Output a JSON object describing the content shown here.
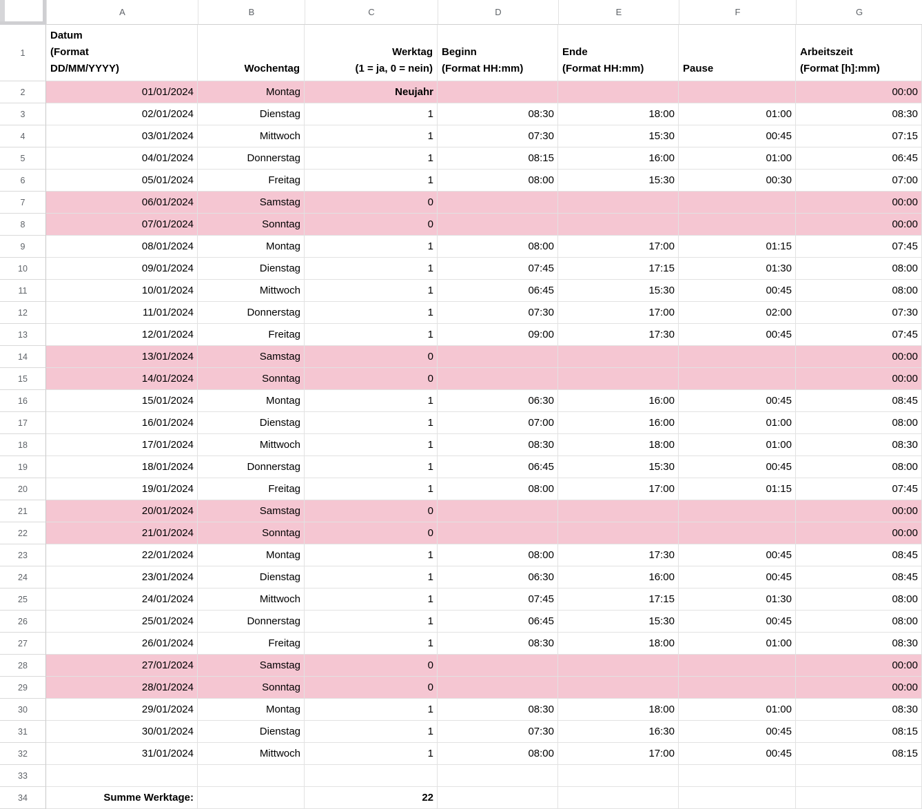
{
  "sheet": {
    "column_letters": [
      "A",
      "B",
      "C",
      "D",
      "E",
      "F",
      "G"
    ],
    "header_row": {
      "n": "1",
      "cells": [
        "Datum\n(Format\nDD/MM/YYYY)",
        "Wochentag",
        "Werktag\n(1 = ja, 0 = nein)",
        "Beginn\n(Format HH:mm)",
        "Ende\n(Format HH:mm)",
        "Pause",
        "Arbeitszeit\n(Format [h]:mm)"
      ]
    },
    "rows": [
      {
        "n": "2",
        "highlight": true,
        "bold_cols": [
          2
        ],
        "cells": [
          "01/01/2024",
          "Montag",
          "Neujahr",
          "",
          "",
          "",
          "00:00"
        ]
      },
      {
        "n": "3",
        "highlight": false,
        "bold_cols": [],
        "cells": [
          "02/01/2024",
          "Dienstag",
          "1",
          "08:30",
          "18:00",
          "01:00",
          "08:30"
        ]
      },
      {
        "n": "4",
        "highlight": false,
        "bold_cols": [],
        "cells": [
          "03/01/2024",
          "Mittwoch",
          "1",
          "07:30",
          "15:30",
          "00:45",
          "07:15"
        ]
      },
      {
        "n": "5",
        "highlight": false,
        "bold_cols": [],
        "cells": [
          "04/01/2024",
          "Donnerstag",
          "1",
          "08:15",
          "16:00",
          "01:00",
          "06:45"
        ]
      },
      {
        "n": "6",
        "highlight": false,
        "bold_cols": [],
        "cells": [
          "05/01/2024",
          "Freitag",
          "1",
          "08:00",
          "15:30",
          "00:30",
          "07:00"
        ]
      },
      {
        "n": "7",
        "highlight": true,
        "bold_cols": [],
        "cells": [
          "06/01/2024",
          "Samstag",
          "0",
          "",
          "",
          "",
          "00:00"
        ]
      },
      {
        "n": "8",
        "highlight": true,
        "bold_cols": [],
        "cells": [
          "07/01/2024",
          "Sonntag",
          "0",
          "",
          "",
          "",
          "00:00"
        ]
      },
      {
        "n": "9",
        "highlight": false,
        "bold_cols": [],
        "cells": [
          "08/01/2024",
          "Montag",
          "1",
          "08:00",
          "17:00",
          "01:15",
          "07:45"
        ]
      },
      {
        "n": "10",
        "highlight": false,
        "bold_cols": [],
        "cells": [
          "09/01/2024",
          "Dienstag",
          "1",
          "07:45",
          "17:15",
          "01:30",
          "08:00"
        ]
      },
      {
        "n": "11",
        "highlight": false,
        "bold_cols": [],
        "cells": [
          "10/01/2024",
          "Mittwoch",
          "1",
          "06:45",
          "15:30",
          "00:45",
          "08:00"
        ]
      },
      {
        "n": "12",
        "highlight": false,
        "bold_cols": [],
        "cells": [
          "11/01/2024",
          "Donnerstag",
          "1",
          "07:30",
          "17:00",
          "02:00",
          "07:30"
        ]
      },
      {
        "n": "13",
        "highlight": false,
        "bold_cols": [],
        "cells": [
          "12/01/2024",
          "Freitag",
          "1",
          "09:00",
          "17:30",
          "00:45",
          "07:45"
        ]
      },
      {
        "n": "14",
        "highlight": true,
        "bold_cols": [],
        "cells": [
          "13/01/2024",
          "Samstag",
          "0",
          "",
          "",
          "",
          "00:00"
        ]
      },
      {
        "n": "15",
        "highlight": true,
        "bold_cols": [],
        "cells": [
          "14/01/2024",
          "Sonntag",
          "0",
          "",
          "",
          "",
          "00:00"
        ]
      },
      {
        "n": "16",
        "highlight": false,
        "bold_cols": [],
        "cells": [
          "15/01/2024",
          "Montag",
          "1",
          "06:30",
          "16:00",
          "00:45",
          "08:45"
        ]
      },
      {
        "n": "17",
        "highlight": false,
        "bold_cols": [],
        "cells": [
          "16/01/2024",
          "Dienstag",
          "1",
          "07:00",
          "16:00",
          "01:00",
          "08:00"
        ]
      },
      {
        "n": "18",
        "highlight": false,
        "bold_cols": [],
        "cells": [
          "17/01/2024",
          "Mittwoch",
          "1",
          "08:30",
          "18:00",
          "01:00",
          "08:30"
        ]
      },
      {
        "n": "19",
        "highlight": false,
        "bold_cols": [],
        "cells": [
          "18/01/2024",
          "Donnerstag",
          "1",
          "06:45",
          "15:30",
          "00:45",
          "08:00"
        ]
      },
      {
        "n": "20",
        "highlight": false,
        "bold_cols": [],
        "cells": [
          "19/01/2024",
          "Freitag",
          "1",
          "08:00",
          "17:00",
          "01:15",
          "07:45"
        ]
      },
      {
        "n": "21",
        "highlight": true,
        "bold_cols": [],
        "cells": [
          "20/01/2024",
          "Samstag",
          "0",
          "",
          "",
          "",
          "00:00"
        ]
      },
      {
        "n": "22",
        "highlight": true,
        "bold_cols": [],
        "cells": [
          "21/01/2024",
          "Sonntag",
          "0",
          "",
          "",
          "",
          "00:00"
        ]
      },
      {
        "n": "23",
        "highlight": false,
        "bold_cols": [],
        "cells": [
          "22/01/2024",
          "Montag",
          "1",
          "08:00",
          "17:30",
          "00:45",
          "08:45"
        ]
      },
      {
        "n": "24",
        "highlight": false,
        "bold_cols": [],
        "cells": [
          "23/01/2024",
          "Dienstag",
          "1",
          "06:30",
          "16:00",
          "00:45",
          "08:45"
        ]
      },
      {
        "n": "25",
        "highlight": false,
        "bold_cols": [],
        "cells": [
          "24/01/2024",
          "Mittwoch",
          "1",
          "07:45",
          "17:15",
          "01:30",
          "08:00"
        ]
      },
      {
        "n": "26",
        "highlight": false,
        "bold_cols": [],
        "cells": [
          "25/01/2024",
          "Donnerstag",
          "1",
          "06:45",
          "15:30",
          "00:45",
          "08:00"
        ]
      },
      {
        "n": "27",
        "highlight": false,
        "bold_cols": [],
        "cells": [
          "26/01/2024",
          "Freitag",
          "1",
          "08:30",
          "18:00",
          "01:00",
          "08:30"
        ]
      },
      {
        "n": "28",
        "highlight": true,
        "bold_cols": [],
        "cells": [
          "27/01/2024",
          "Samstag",
          "0",
          "",
          "",
          "",
          "00:00"
        ]
      },
      {
        "n": "29",
        "highlight": true,
        "bold_cols": [],
        "cells": [
          "28/01/2024",
          "Sonntag",
          "0",
          "",
          "",
          "",
          "00:00"
        ]
      },
      {
        "n": "30",
        "highlight": false,
        "bold_cols": [],
        "cells": [
          "29/01/2024",
          "Montag",
          "1",
          "08:30",
          "18:00",
          "01:00",
          "08:30"
        ]
      },
      {
        "n": "31",
        "highlight": false,
        "bold_cols": [],
        "cells": [
          "30/01/2024",
          "Dienstag",
          "1",
          "07:30",
          "16:30",
          "00:45",
          "08:15"
        ]
      },
      {
        "n": "32",
        "highlight": false,
        "bold_cols": [],
        "cells": [
          "31/01/2024",
          "Mittwoch",
          "1",
          "08:00",
          "17:00",
          "00:45",
          "08:15"
        ]
      },
      {
        "n": "33",
        "highlight": false,
        "bold_cols": [],
        "cells": [
          "",
          "",
          "",
          "",
          "",
          "",
          ""
        ]
      },
      {
        "n": "34",
        "highlight": false,
        "bold_cols": [
          0,
          2
        ],
        "cells": [
          "Summe Werktage:",
          "",
          "22",
          "",
          "",
          "",
          ""
        ]
      }
    ],
    "colors": {
      "highlight_pink": "#f5c6d2",
      "gridline": "#e2e2e2",
      "header_text_gray": "#5f6368",
      "cell_text": "#000000"
    }
  }
}
